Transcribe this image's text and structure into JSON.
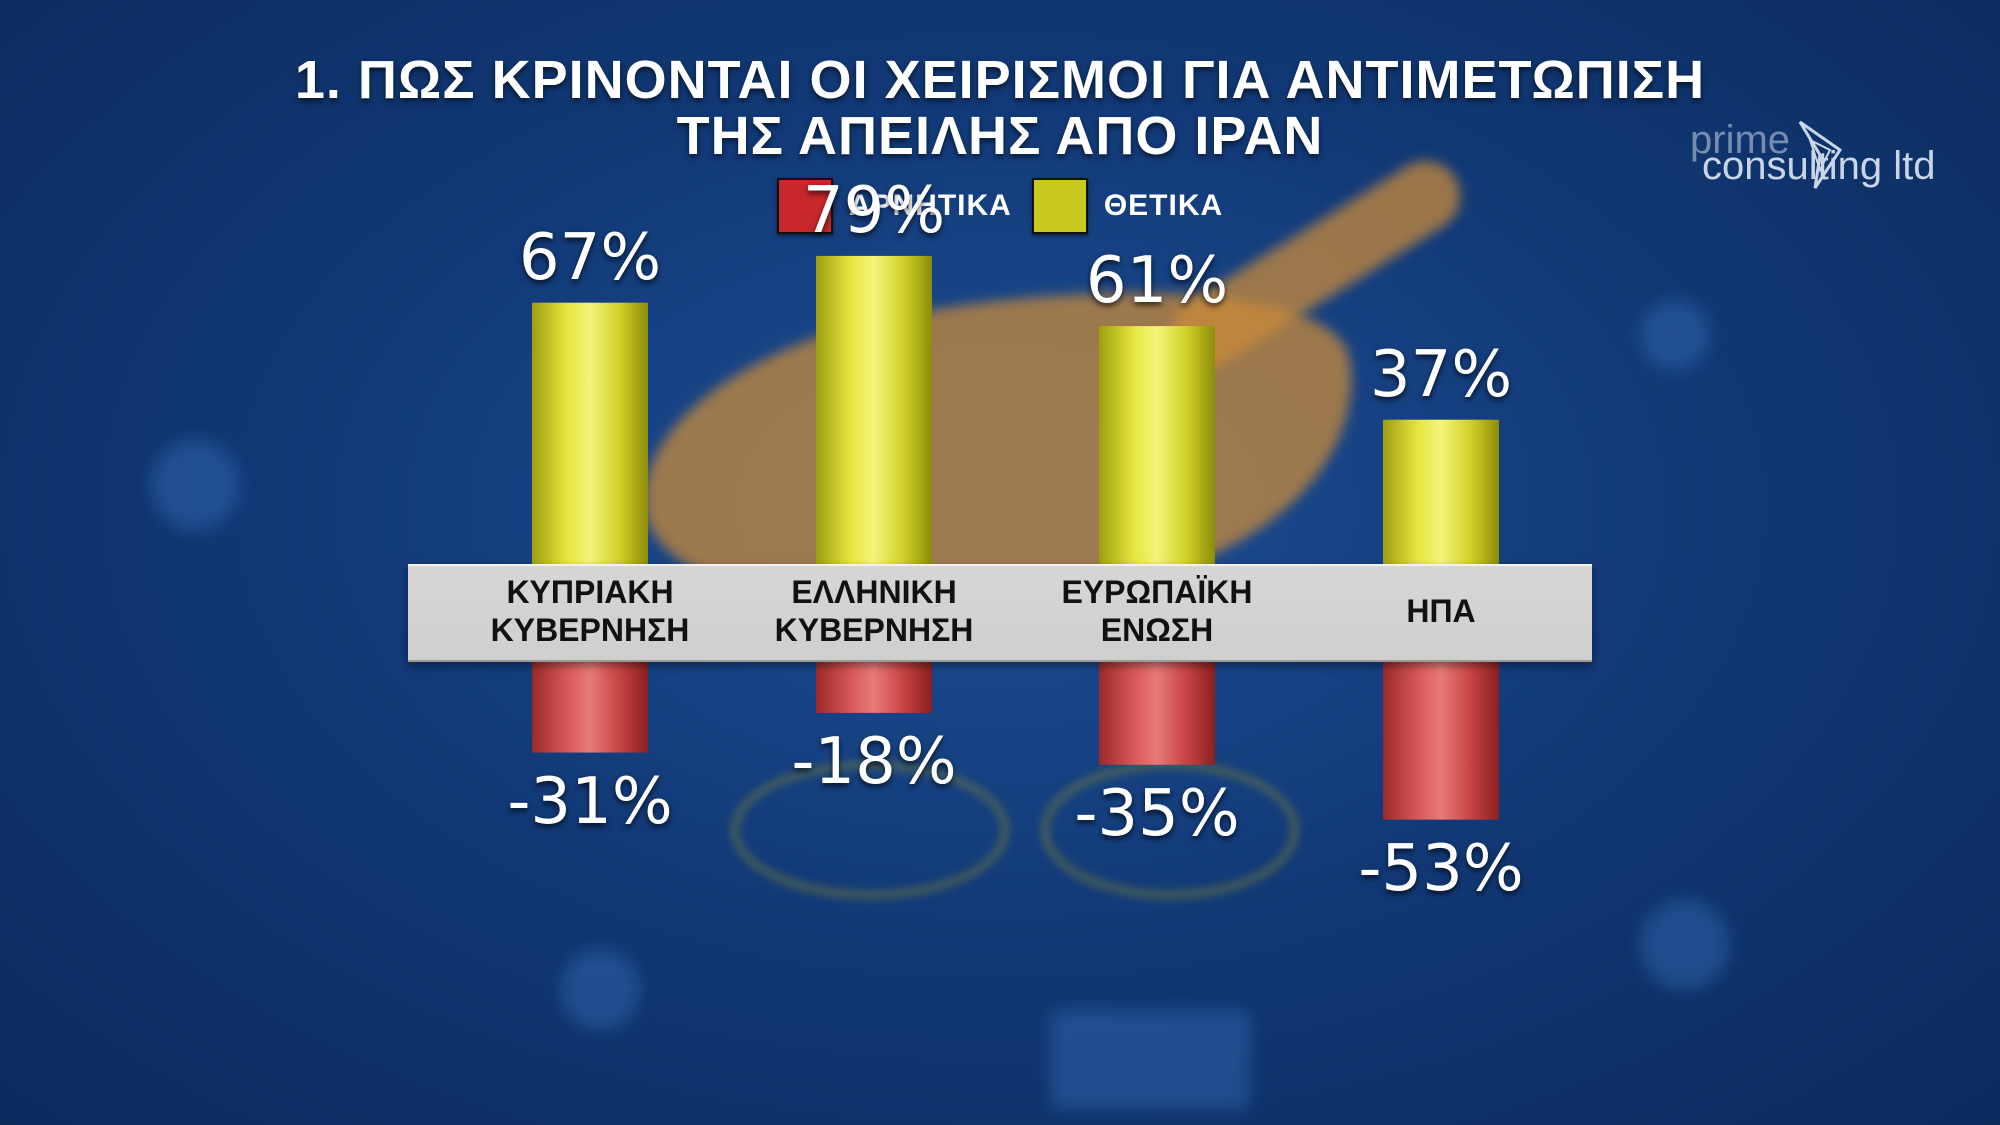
{
  "title_line1": "1. ΠΩΣ ΚΡΙΝΟΝΤΑΙ ΟΙ ΧΕΙΡΙΣΜΟΙ ΓΙΑ ΑΝΤΙΜΕΤΩΠΙΣΗ",
  "title_line2": "ΤΗΣ ΑΠΕΙΛΗΣ ΑΠΟ ΙΡΑΝ",
  "legend": [
    {
      "label": "ΑΡΝΗΤΙΚΑ",
      "color": "#c8282b"
    },
    {
      "label": "ΘΕΤΙΚΑ",
      "color": "#c8c81e"
    }
  ],
  "logo": {
    "line1": "prime",
    "line2": "consulting ltd"
  },
  "chart_data": {
    "type": "bar",
    "categories": [
      "ΚΥΠΡΙΑΚΗ\nΚΥΒΕΡΝΗΣΗ",
      "ΕΛΛΗΝΙΚΗ\nΚΥΒΕΡΝΗΣΗ",
      "ΕΥΡΩΠΑΪΚΗ\nΕΝΩΣΗ",
      "ΗΠΑ"
    ],
    "series": [
      {
        "name": "ΘΕΤΙΚΑ",
        "values": [
          67,
          79,
          61,
          37
        ],
        "labels": [
          "67%",
          "79%",
          "61%",
          "37%"
        ],
        "color": "#c8c81e"
      },
      {
        "name": "ΑΡΝΗΤΙΚΑ",
        "values": [
          -31,
          -18,
          -35,
          -53
        ],
        "labels": [
          "-31%",
          "-18%",
          "-35%",
          "-53%"
        ],
        "color": "#c8282b"
      }
    ],
    "ylim": [
      -60,
      90
    ]
  }
}
